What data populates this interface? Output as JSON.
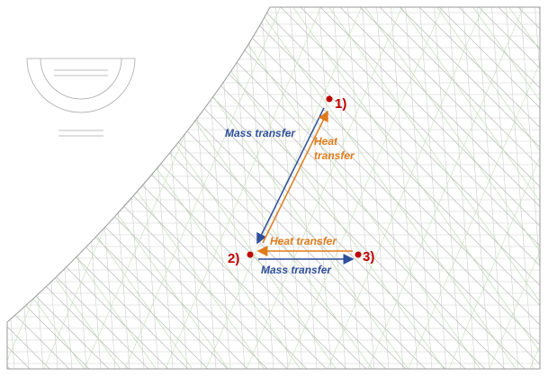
{
  "points": [
    {
      "label": "1)"
    },
    {
      "label": "2)"
    },
    {
      "label": "3)"
    }
  ],
  "arrows": [
    {
      "label": "Mass transfer"
    },
    {
      "label_lines": [
        "Heat",
        "transfer"
      ]
    },
    {
      "label": "Heat transfer"
    },
    {
      "label": "Mass transfer"
    }
  ]
}
